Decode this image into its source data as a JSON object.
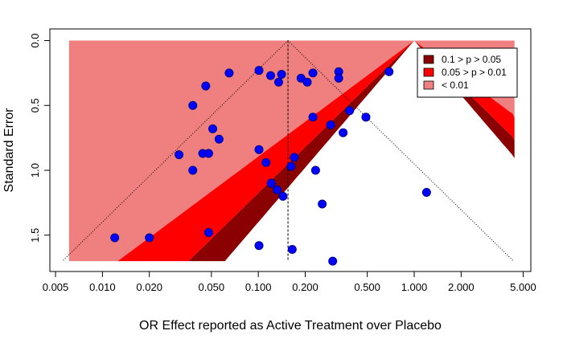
{
  "chart_data": {
    "type": "scatter",
    "title": "",
    "xlabel": "OR Effect reported as Active Treatment over Placebo",
    "ylabel": "Standard Error",
    "x_scale": "log",
    "y_reversed": true,
    "xlim": [
      0.005,
      5.0
    ],
    "ylim": [
      0.0,
      1.7
    ],
    "x_ticks": [
      0.005,
      0.01,
      0.02,
      0.05,
      0.1,
      0.2,
      0.5,
      1.0,
      2.0,
      5.0
    ],
    "x_tick_labels": [
      "0.005",
      "0.010",
      "0.020",
      "0.050",
      "0.100",
      "0.200",
      "0.500",
      "1.000",
      "2.000",
      "5.000"
    ],
    "y_ticks": [
      0.0,
      0.5,
      1.0,
      1.5
    ],
    "y_tick_labels": [
      "0.0",
      "0.5",
      "1.0",
      "1.5"
    ],
    "pooled_estimate": 0.155,
    "null_value": 1.0,
    "contour_regions": [
      {
        "label": "0.1 > p > 0.05",
        "color": "#8b0000"
      },
      {
        "label": "0.05 > p > 0.01",
        "color": "#ff0000"
      },
      {
        "label": "< 0.01",
        "color": "#f08080"
      }
    ],
    "point_color": "#0000ff",
    "legend_position": "top-right",
    "grid": false,
    "points": [
      {
        "x": 0.012,
        "y": 1.52
      },
      {
        "x": 0.02,
        "y": 1.52
      },
      {
        "x": 0.031,
        "y": 0.88
      },
      {
        "x": 0.038,
        "y": 0.5
      },
      {
        "x": 0.038,
        "y": 1.0
      },
      {
        "x": 0.044,
        "y": 0.87
      },
      {
        "x": 0.046,
        "y": 0.35
      },
      {
        "x": 0.048,
        "y": 0.87
      },
      {
        "x": 0.048,
        "y": 1.48
      },
      {
        "x": 0.051,
        "y": 0.68
      },
      {
        "x": 0.056,
        "y": 0.76
      },
      {
        "x": 0.065,
        "y": 0.25
      },
      {
        "x": 0.101,
        "y": 0.23
      },
      {
        "x": 0.101,
        "y": 0.84
      },
      {
        "x": 0.101,
        "y": 1.58
      },
      {
        "x": 0.112,
        "y": 0.94
      },
      {
        "x": 0.12,
        "y": 0.27
      },
      {
        "x": 0.121,
        "y": 1.1
      },
      {
        "x": 0.132,
        "y": 1.15
      },
      {
        "x": 0.135,
        "y": 0.32
      },
      {
        "x": 0.141,
        "y": 0.26
      },
      {
        "x": 0.144,
        "y": 1.2
      },
      {
        "x": 0.162,
        "y": 0.97
      },
      {
        "x": 0.165,
        "y": 1.61
      },
      {
        "x": 0.17,
        "y": 0.9
      },
      {
        "x": 0.188,
        "y": 0.29
      },
      {
        "x": 0.206,
        "y": 0.32
      },
      {
        "x": 0.224,
        "y": 0.25
      },
      {
        "x": 0.224,
        "y": 0.59
      },
      {
        "x": 0.233,
        "y": 1.0
      },
      {
        "x": 0.257,
        "y": 1.26
      },
      {
        "x": 0.291,
        "y": 0.65
      },
      {
        "x": 0.3,
        "y": 1.7
      },
      {
        "x": 0.328,
        "y": 0.24
      },
      {
        "x": 0.328,
        "y": 0.29
      },
      {
        "x": 0.35,
        "y": 0.71
      },
      {
        "x": 0.385,
        "y": 0.54
      },
      {
        "x": 0.49,
        "y": 0.59
      },
      {
        "x": 0.69,
        "y": 0.24
      },
      {
        "x": 1.2,
        "y": 1.17
      }
    ]
  }
}
